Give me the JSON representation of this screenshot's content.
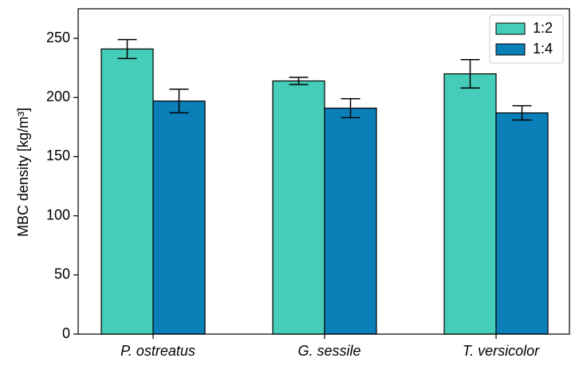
{
  "chart_data": {
    "type": "bar",
    "ylabel": "MBC density [kg/m³]",
    "categories": [
      "P. ostreatus",
      "G. sessile",
      "T. versicolor"
    ],
    "series": [
      {
        "name": "1:2",
        "color": "#45cdb9",
        "values": [
          241,
          214,
          220
        ],
        "errors": [
          8,
          3,
          12
        ]
      },
      {
        "name": "1:4",
        "color": "#0a7fb8",
        "values": [
          197,
          191,
          187
        ],
        "errors": [
          10,
          8,
          6
        ]
      }
    ],
    "ylim": [
      0,
      275
    ],
    "yticks": [
      0,
      50,
      100,
      150,
      200,
      250
    ],
    "legend": "upper right"
  }
}
